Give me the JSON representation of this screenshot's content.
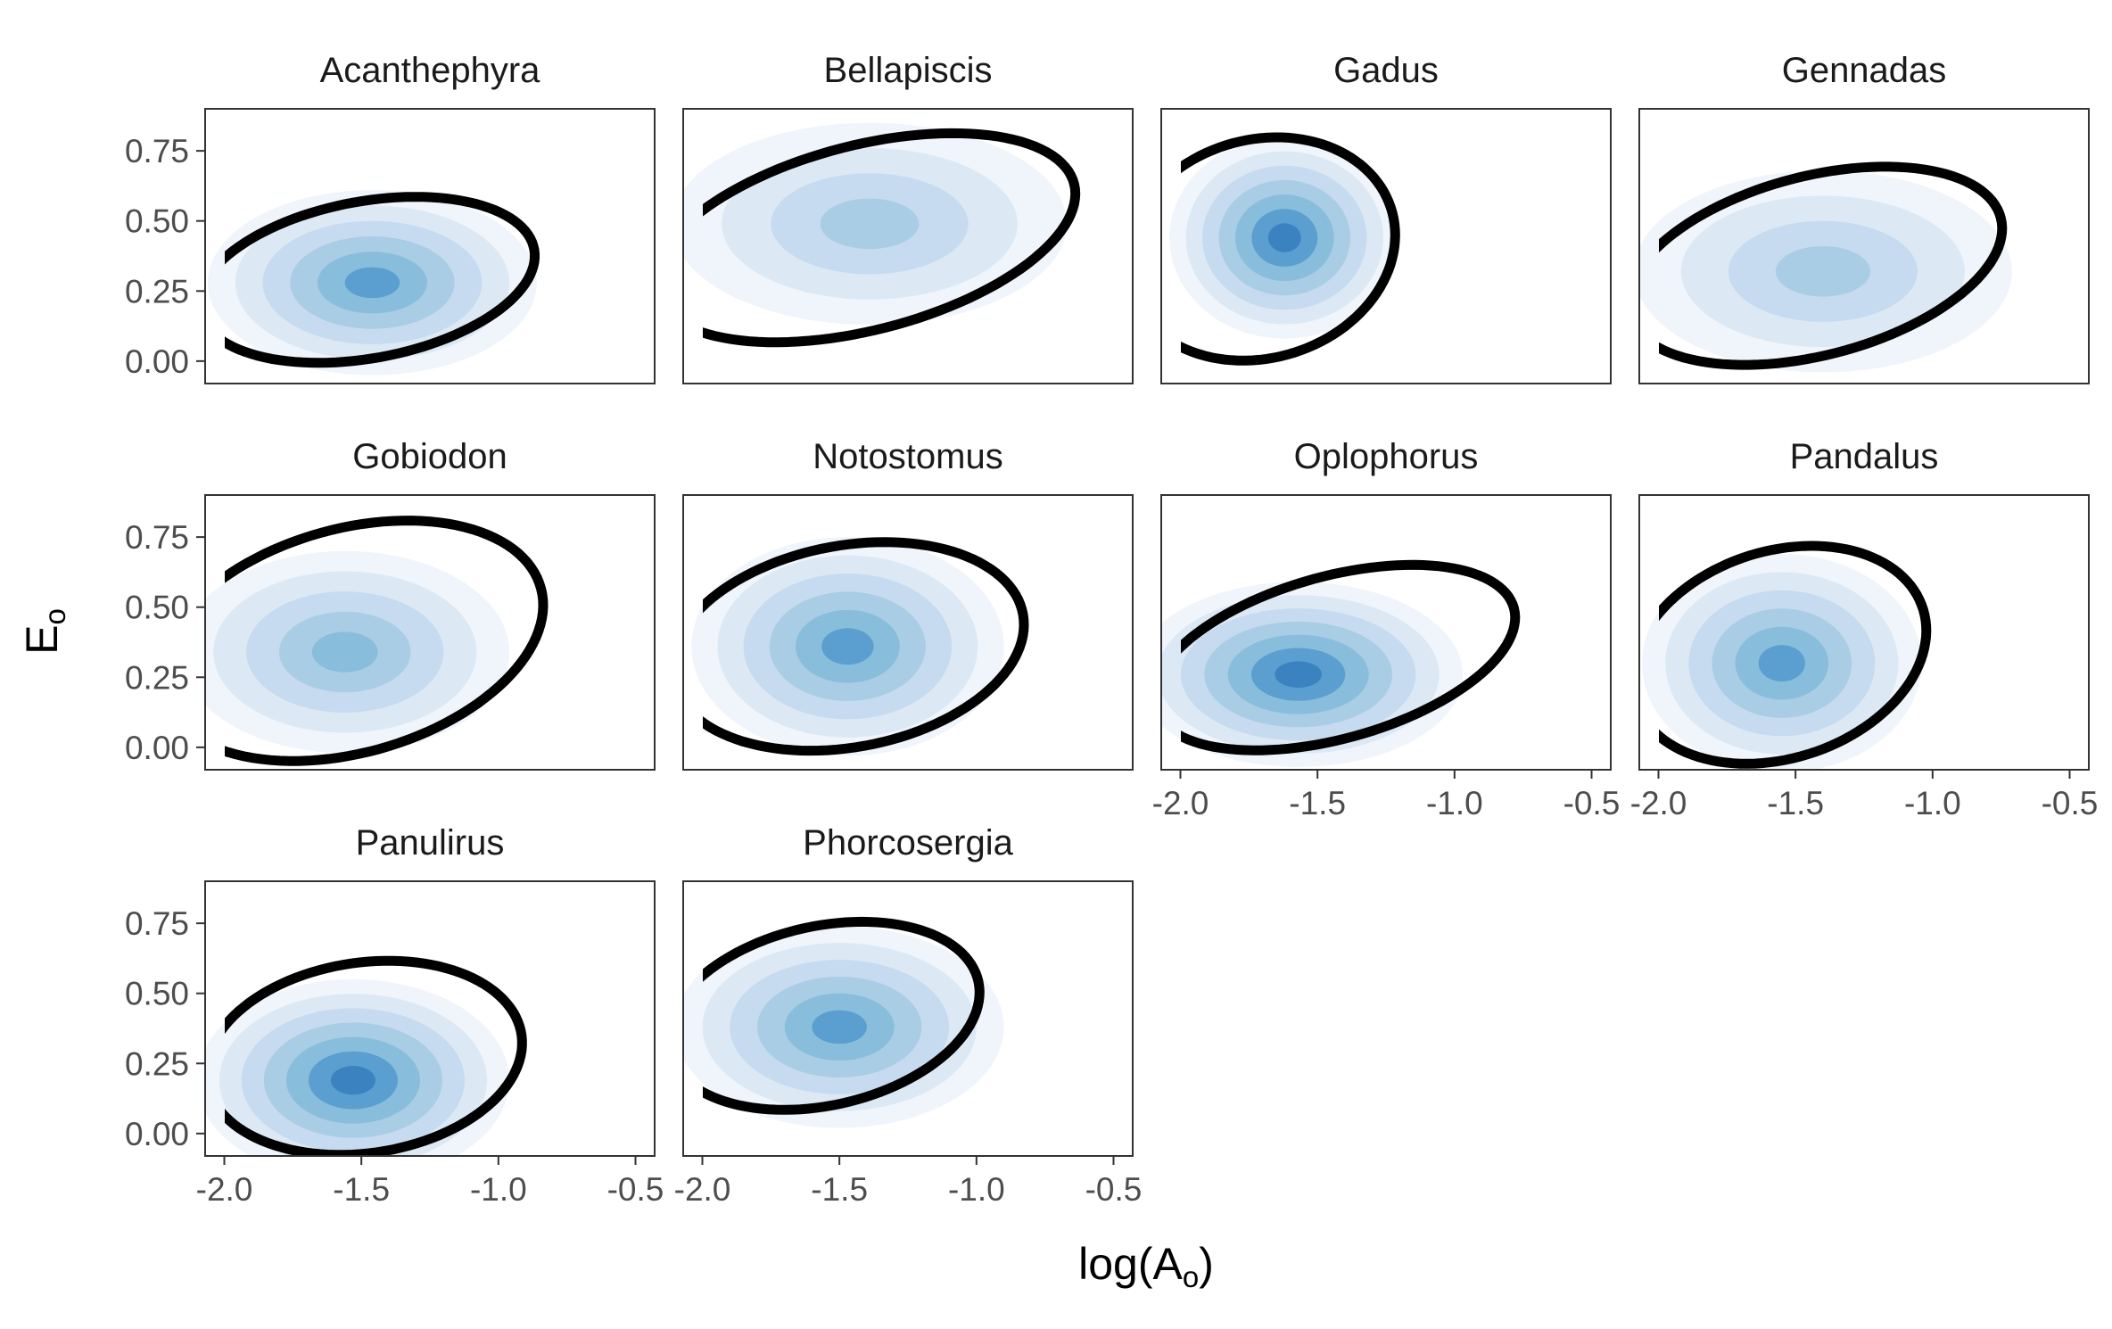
{
  "chart_data": {
    "type": "faceted-density-contour",
    "xlabel": "log(A",
    "xlabel_sub": "o",
    "xlabel_close": ")",
    "ylabel": "E",
    "ylabel_sub": "o",
    "xlim": [
      -2.07,
      -0.43
    ],
    "ylim": [
      -0.08,
      0.9
    ],
    "x_ticks": [
      -2.0,
      -1.5,
      -1.0,
      -0.5
    ],
    "x_tick_labels": [
      "-2.0",
      "-1.5",
      "-1.0",
      "-0.5"
    ],
    "y_ticks": [
      0.0,
      0.25,
      0.5,
      0.75
    ],
    "y_tick_labels": [
      "0.00",
      "0.25",
      "0.50",
      "0.75"
    ],
    "colors": {
      "density_levels": [
        "#eff5fb",
        "#dce9f5",
        "#c6dbef",
        "#a9cde4",
        "#88bddc",
        "#5a9fcf",
        "#3b83c0"
      ],
      "ellipse": "#000000",
      "panel_border": "#333333"
    },
    "panels": [
      {
        "name": "Acanthephyra",
        "ellipse": {
          "cx": -1.48,
          "cy": 0.29,
          "rx": 0.62,
          "ry": 0.28,
          "angle_deg": 10
        },
        "density": {
          "cx": -1.46,
          "cy": 0.28,
          "sx": 0.2,
          "sy": 0.11,
          "peak_levels": 6
        }
      },
      {
        "name": "Bellapiscis",
        "ellipse": {
          "cx": -1.41,
          "cy": 0.44,
          "rx": 0.79,
          "ry": 0.33,
          "angle_deg": 14
        },
        "density": {
          "cx": -1.39,
          "cy": 0.49,
          "sx": 0.24,
          "sy": 0.12,
          "peak_levels": 4
        }
      },
      {
        "name": "Gadus",
        "ellipse": {
          "cx": -1.71,
          "cy": 0.4,
          "rx": 0.5,
          "ry": 0.39,
          "angle_deg": 15
        },
        "density": {
          "cx": -1.62,
          "cy": 0.44,
          "sx": 0.14,
          "sy": 0.12,
          "peak_levels": 7
        }
      },
      {
        "name": "Gennadas",
        "ellipse": {
          "cx": -1.43,
          "cy": 0.34,
          "rx": 0.7,
          "ry": 0.32,
          "angle_deg": 14
        },
        "density": {
          "cx": -1.4,
          "cy": 0.32,
          "sx": 0.23,
          "sy": 0.12,
          "peak_levels": 4
        }
      },
      {
        "name": "Gobiodon",
        "ellipse": {
          "cx": -1.54,
          "cy": 0.38,
          "rx": 0.72,
          "ry": 0.4,
          "angle_deg": 15
        },
        "density": {
          "cx": -1.56,
          "cy": 0.34,
          "sx": 0.2,
          "sy": 0.12,
          "peak_levels": 5
        }
      },
      {
        "name": "Notostomus",
        "ellipse": {
          "cx": -1.47,
          "cy": 0.36,
          "rx": 0.65,
          "ry": 0.36,
          "angle_deg": 10
        },
        "density": {
          "cx": -1.47,
          "cy": 0.36,
          "sx": 0.19,
          "sy": 0.13,
          "peak_levels": 6
        }
      },
      {
        "name": "Oplophorus",
        "ellipse": {
          "cx": -1.44,
          "cy": 0.32,
          "rx": 0.68,
          "ry": 0.29,
          "angle_deg": 15
        },
        "density": {
          "cx": -1.57,
          "cy": 0.26,
          "sx": 0.2,
          "sy": 0.11,
          "peak_levels": 7
        }
      },
      {
        "name": "Pandalus",
        "ellipse": {
          "cx": -1.56,
          "cy": 0.33,
          "rx": 0.55,
          "ry": 0.37,
          "angle_deg": 17
        },
        "density": {
          "cx": -1.55,
          "cy": 0.3,
          "sx": 0.17,
          "sy": 0.13,
          "peak_levels": 6
        }
      },
      {
        "name": "Panulirus",
        "ellipse": {
          "cx": -1.49,
          "cy": 0.27,
          "rx": 0.58,
          "ry": 0.34,
          "angle_deg": 8
        },
        "density": {
          "cx": -1.53,
          "cy": 0.19,
          "sx": 0.19,
          "sy": 0.12,
          "peak_levels": 7
        }
      },
      {
        "name": "Phorcosergia",
        "ellipse": {
          "cx": -1.56,
          "cy": 0.42,
          "rx": 0.58,
          "ry": 0.32,
          "angle_deg": 12
        },
        "density": {
          "cx": -1.5,
          "cy": 0.38,
          "sx": 0.2,
          "sy": 0.12,
          "peak_levels": 6
        }
      }
    ]
  }
}
